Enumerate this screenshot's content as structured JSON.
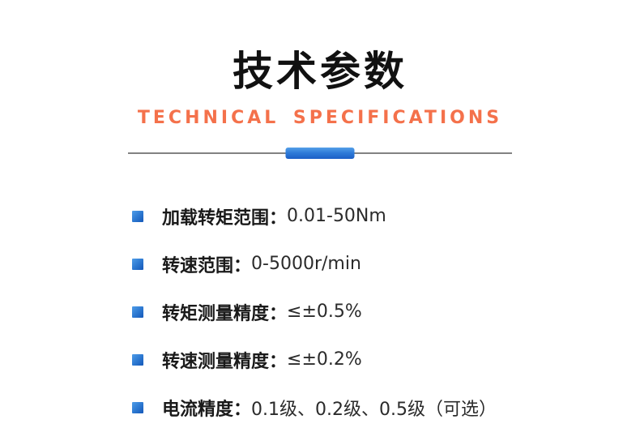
{
  "header": {
    "title": "技术参数",
    "subtitle": "TECHNICAL SPECIFICATIONS"
  },
  "colors": {
    "subtitle_orange": "#f4714b",
    "accent_blue_light": "#55a0e8",
    "accent_blue_dark": "#1b5ec6",
    "divider_gray": "#828282",
    "title_black": "#111111"
  },
  "specs": {
    "items": [
      {
        "label": "加载转矩范围：",
        "value": "0.01-50Nm"
      },
      {
        "label": "转速范围：",
        "value": "0-5000r/min"
      },
      {
        "label": "转矩测量精度：",
        "value": "≤±0.5%"
      },
      {
        "label": "转速测量精度：",
        "value": "≤±0.2%"
      },
      {
        "label": "电流精度：",
        "value": "0.1级、0.2级、0.5级（可选）"
      }
    ]
  }
}
